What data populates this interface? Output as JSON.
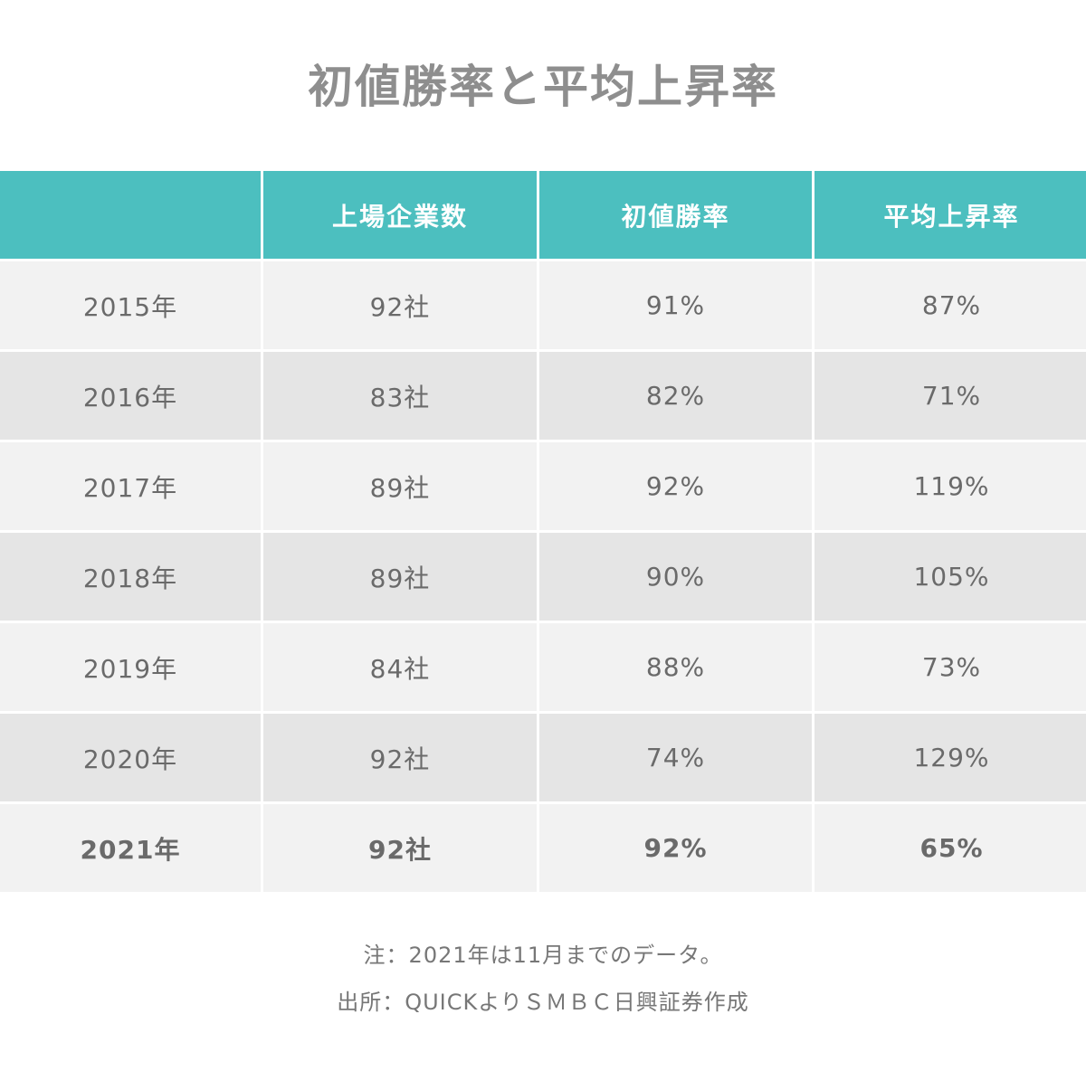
{
  "chart_data": {
    "type": "table",
    "title": "初値勝率と平均上昇率",
    "columns": [
      "",
      "上場企業数",
      "初値勝率",
      "平均上昇率"
    ],
    "rows": [
      [
        "2015年",
        "92社",
        "91%",
        "87%"
      ],
      [
        "2016年",
        "83社",
        "82%",
        "71%"
      ],
      [
        "2017年",
        "89社",
        "92%",
        "119%"
      ],
      [
        "2018年",
        "89社",
        "90%",
        "105%"
      ],
      [
        "2019年",
        "84社",
        "88%",
        "73%"
      ],
      [
        "2020年",
        "92社",
        "74%",
        "129%"
      ],
      [
        "2021年",
        "92社",
        "92%",
        "65%"
      ]
    ],
    "highlight_row": 6,
    "header_color": "#4cbfbf",
    "row_colors": [
      "#f2f2f2",
      "#e5e5e5"
    ]
  },
  "notes": {
    "note": "注：2021年は11月までのデータ。",
    "source": "出所：QUICKよりＳＭＢＣ日興証券作成"
  }
}
